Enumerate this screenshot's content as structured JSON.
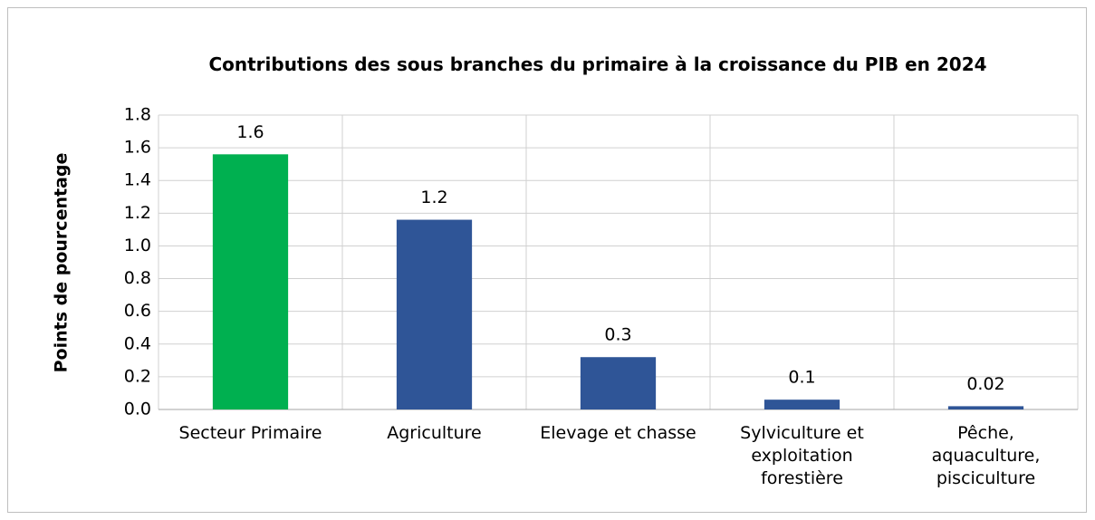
{
  "chart_data": {
    "type": "bar",
    "title": "Contributions des sous branches du primaire à la croissance du PIB en 2024",
    "y_label": "Points de pourcentage",
    "categories": [
      "Secteur Primaire",
      "Agriculture",
      "Elevage et chasse",
      "Sylviculture et exploitation forestière",
      "Pêche, aquaculture, pisciculture"
    ],
    "values": [
      1.56,
      1.16,
      0.32,
      0.06,
      0.02
    ],
    "value_labels": [
      "1.6",
      "1.2",
      "0.3",
      "0.1",
      "0.02"
    ],
    "colors": [
      "#00b050",
      "#2f5597",
      "#2f5597",
      "#2f5597",
      "#2f5597"
    ],
    "ylim": [
      0,
      1.8
    ],
    "yticks": [
      {
        "value": 0,
        "label": "0.0"
      },
      0.2,
      0.4,
      0.6,
      0.8,
      {
        "value": 1,
        "label": "1.0"
      },
      1.2,
      1.4,
      1.6,
      1.8
    ],
    "grid": true
  }
}
